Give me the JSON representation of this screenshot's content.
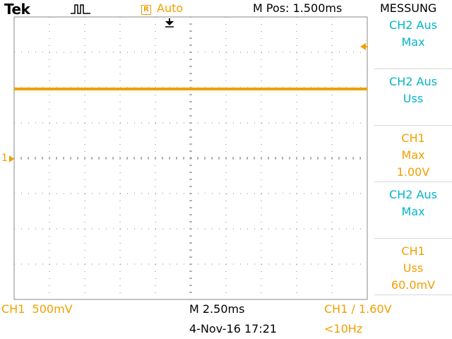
{
  "brand": "Tek",
  "top_bar": {
    "acquisition_icon": "run-pulse-icon",
    "trigger_status_icon": "R",
    "trigger_mode": "Auto",
    "horizontal_position": "M Pos: 1.500ms"
  },
  "menu": {
    "title": "MESSUNG",
    "items": [
      {
        "line1": "CH2 Aus",
        "line2": "Max",
        "line3": ""
      },
      {
        "line1": "CH2 Aus",
        "line2": "Uss",
        "line3": ""
      },
      {
        "line1": "CH1",
        "line2": "Max",
        "line3": "1.00V"
      },
      {
        "line1": "CH2 Aus",
        "line2": "Max",
        "line3": ""
      },
      {
        "line1": "CH1",
        "line2": "Uss",
        "line3": "60.0mV"
      }
    ]
  },
  "screen": {
    "channel_marker": "1",
    "trace_level_fraction_from_top": 0.255
  },
  "bottom_bar": {
    "ch1_scale": "CH1  500mV",
    "timebase": "M 2.50ms",
    "trigger": "CH1 ∕ 1.60V",
    "date": "4-Nov-16 17:21",
    "frequency": "<10Hz"
  },
  "colors": {
    "ch1": "#f0a000",
    "menu_text": "#00b5c8",
    "grid": "#7f7f7f"
  }
}
